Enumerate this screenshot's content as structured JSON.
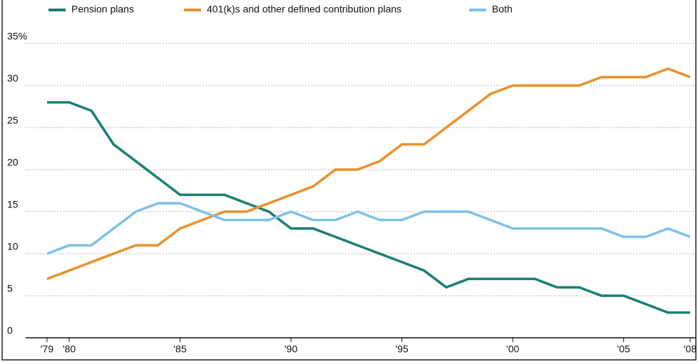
{
  "chart_data": {
    "type": "line",
    "x": [
      1979,
      1980,
      1981,
      1982,
      1983,
      1984,
      1985,
      1986,
      1987,
      1988,
      1989,
      1990,
      1991,
      1992,
      1993,
      1994,
      1995,
      1996,
      1997,
      1998,
      1999,
      2000,
      2001,
      2002,
      2003,
      2004,
      2005,
      2006,
      2007,
      2008
    ],
    "series": [
      {
        "name": "Pension plans",
        "color": "#1b7f73",
        "values": [
          28,
          28,
          27,
          23,
          21,
          19,
          17,
          17,
          17,
          16,
          15,
          13,
          13,
          12,
          11,
          10,
          9,
          8,
          6,
          7,
          7,
          7,
          7,
          6,
          6,
          5,
          5,
          4,
          3,
          3
        ]
      },
      {
        "name": "401(k)s and other defined contribution plans",
        "color": "#e8912e",
        "values": [
          7,
          8,
          9,
          10,
          11,
          11,
          13,
          14,
          15,
          15,
          16,
          17,
          18,
          20,
          20,
          21,
          23,
          23,
          25,
          27,
          29,
          30,
          30,
          30,
          30,
          31,
          31,
          31,
          32,
          31
        ]
      },
      {
        "name": "Both",
        "color": "#7fc1e9",
        "values": [
          10,
          11,
          11,
          13,
          15,
          16,
          16,
          15,
          14,
          14,
          14,
          15,
          14,
          14,
          15,
          14,
          14,
          15,
          15,
          15,
          14,
          13,
          13,
          13,
          13,
          13,
          12,
          12,
          13,
          12
        ]
      }
    ],
    "xlim": [
      1979,
      2008
    ],
    "xticks": [
      {
        "value": 1979,
        "label": "'79"
      },
      {
        "value": 1980,
        "label": "'80"
      },
      {
        "value": 1985,
        "label": "'85"
      },
      {
        "value": 1990,
        "label": "'90"
      },
      {
        "value": 1995,
        "label": "'95"
      },
      {
        "value": 2000,
        "label": "'00"
      },
      {
        "value": 2005,
        "label": "'05"
      },
      {
        "value": 2008,
        "label": "'08"
      }
    ],
    "ylim": [
      0,
      35
    ],
    "yticks": [
      0,
      5,
      10,
      15,
      20,
      25,
      30,
      {
        "value": 35,
        "label": "35%"
      }
    ],
    "grid": true
  }
}
